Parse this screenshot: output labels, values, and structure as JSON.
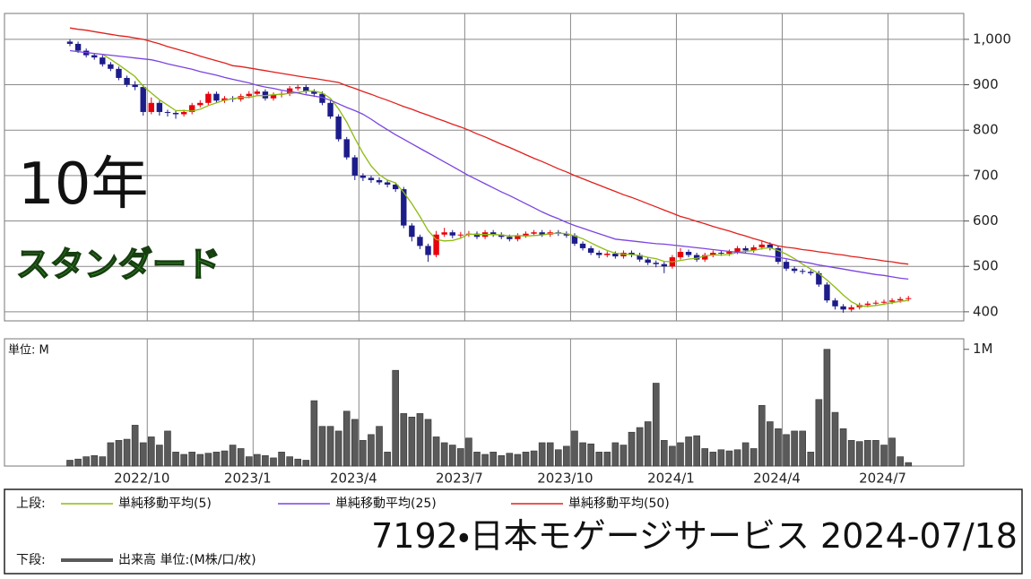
{
  "title": "7192・日本モゲージサービス 2024-07/18",
  "period_label": "10年",
  "market_label": "スタンダード",
  "legend_upper_label": "上段:",
  "legend_lower_label": "下段:",
  "chart_data": [
    {
      "type": "candlestick",
      "up_color": "#e8000b",
      "down_color": "#1c1c8a",
      "open": [
        995,
        990,
        975,
        965,
        960,
        945,
        935,
        915,
        900,
        895,
        840,
        860,
        840,
        838,
        835,
        840,
        855,
        860,
        880,
        865,
        870,
        868,
        875,
        880,
        885,
        870,
        878,
        880,
        892,
        895,
        885,
        880,
        860,
        830,
        780,
        740,
        700,
        695,
        690,
        685,
        680,
        670,
        590,
        565,
        545,
        525,
        570,
        575,
        568,
        570,
        572,
        565,
        575,
        570,
        565,
        560,
        568,
        572,
        575,
        570,
        575,
        572,
        568,
        550,
        540,
        530,
        525,
        528,
        522,
        530,
        525,
        515,
        508,
        505,
        500,
        520,
        532,
        525,
        515,
        525,
        530,
        528,
        532,
        540,
        535,
        542,
        548,
        540,
        510,
        495,
        490,
        488,
        485,
        460,
        425,
        412,
        405,
        410,
        415,
        418,
        420,
        422,
        425,
        428
      ],
      "high": [
        1000,
        995,
        980,
        970,
        965,
        950,
        940,
        920,
        908,
        900,
        872,
        865,
        845,
        843,
        845,
        860,
        866,
        885,
        885,
        875,
        875,
        880,
        886,
        890,
        890,
        883,
        886,
        897,
        900,
        900,
        890,
        885,
        865,
        835,
        785,
        745,
        705,
        700,
        696,
        690,
        685,
        675,
        595,
        570,
        550,
        578,
        585,
        580,
        576,
        578,
        577,
        580,
        580,
        575,
        570,
        573,
        577,
        580,
        580,
        580,
        580,
        577,
        573,
        555,
        545,
        535,
        533,
        533,
        535,
        535,
        530,
        520,
        513,
        510,
        525,
        540,
        537,
        530,
        530,
        535,
        535,
        537,
        545,
        545,
        547,
        555,
        553,
        545,
        515,
        500,
        495,
        492,
        490,
        465,
        430,
        417,
        415,
        420,
        423,
        425,
        427,
        430,
        433,
        435
      ],
      "low": [
        985,
        970,
        960,
        955,
        940,
        930,
        910,
        895,
        888,
        832,
        835,
        832,
        830,
        825,
        830,
        835,
        850,
        855,
        860,
        860,
        862,
        863,
        870,
        875,
        865,
        865,
        872,
        875,
        887,
        880,
        873,
        855,
        825,
        775,
        735,
        690,
        688,
        684,
        680,
        674,
        664,
        584,
        555,
        538,
        510,
        520,
        565,
        562,
        563,
        565,
        560,
        560,
        565,
        560,
        555,
        555,
        563,
        567,
        565,
        565,
        567,
        563,
        545,
        535,
        525,
        518,
        520,
        517,
        517,
        520,
        510,
        503,
        498,
        485,
        495,
        515,
        520,
        510,
        510,
        520,
        523,
        523,
        527,
        530,
        530,
        537,
        535,
        505,
        490,
        485,
        483,
        480,
        455,
        420,
        405,
        398,
        400,
        405,
        410,
        413,
        415,
        417,
        420,
        423
      ],
      "close": [
        990,
        975,
        965,
        960,
        945,
        935,
        915,
        900,
        895,
        840,
        860,
        840,
        838,
        835,
        840,
        855,
        860,
        880,
        865,
        870,
        868,
        875,
        880,
        885,
        870,
        878,
        880,
        892,
        895,
        885,
        880,
        860,
        830,
        780,
        740,
        700,
        695,
        690,
        685,
        680,
        670,
        590,
        565,
        545,
        525,
        570,
        575,
        568,
        570,
        572,
        565,
        575,
        570,
        565,
        560,
        568,
        572,
        575,
        570,
        575,
        572,
        568,
        550,
        540,
        530,
        525,
        528,
        522,
        530,
        525,
        515,
        508,
        505,
        500,
        520,
        532,
        525,
        515,
        525,
        530,
        528,
        532,
        540,
        535,
        542,
        548,
        540,
        510,
        495,
        490,
        488,
        485,
        460,
        425,
        412,
        405,
        410,
        415,
        418,
        420,
        422,
        425,
        428,
        430
      ],
      "series": [
        {
          "name": "単純移動平均(5)",
          "color": "#8dbb10",
          "values": [
            null,
            null,
            null,
            null,
            967,
            956,
            944,
            931,
            918,
            897,
            882,
            867,
            855,
            843,
            843,
            842,
            846,
            854,
            860,
            866,
            869,
            872,
            872,
            876,
            876,
            878,
            879,
            881,
            883,
            886,
            886,
            882,
            870,
            847,
            818,
            782,
            749,
            721,
            702,
            690,
            684,
            663,
            638,
            610,
            579,
            559,
            556,
            557,
            562,
            571,
            570,
            570,
            570,
            569,
            567,
            568,
            567,
            568,
            569,
            572,
            573,
            572,
            567,
            561,
            552,
            543,
            535,
            529,
            527,
            526,
            524,
            520,
            517,
            511,
            510,
            513,
            516,
            518,
            523,
            525,
            525,
            526,
            531,
            533,
            535,
            539,
            541,
            535,
            527,
            517,
            505,
            494,
            484,
            470,
            454,
            437,
            422,
            413,
            412,
            414,
            417,
            420,
            423,
            425
          ]
        },
        {
          "name": "単純移動平均(25)",
          "color": "#7a44e0",
          "values": [
            975,
            973,
            971,
            969,
            967,
            965,
            963,
            961,
            959,
            957,
            955,
            951,
            946,
            942,
            938,
            934,
            929,
            925,
            921,
            916,
            912,
            908,
            904,
            899,
            895,
            892,
            888,
            885,
            882,
            878,
            875,
            872,
            866,
            858,
            850,
            843,
            835,
            824,
            812,
            801,
            790,
            780,
            770,
            760,
            750,
            740,
            730,
            720,
            710,
            700,
            691,
            682,
            673,
            664,
            656,
            647,
            638,
            629,
            620,
            612,
            605,
            597,
            590,
            584,
            578,
            572,
            566,
            560,
            558,
            556,
            554,
            552,
            550,
            549,
            547,
            545,
            543,
            541,
            539,
            537,
            535,
            533,
            531,
            529,
            527,
            524,
            522,
            520,
            517,
            513,
            510,
            507,
            503,
            500,
            497,
            494,
            491,
            488,
            485,
            482,
            480,
            477,
            474,
            472
          ]
        },
        {
          "name": "単純移動平均(50)",
          "color": "#e0201b",
          "values": [
            1025,
            1022,
            1020,
            1017,
            1014,
            1011,
            1008,
            1006,
            1003,
            1000,
            995,
            990,
            984,
            979,
            974,
            969,
            963,
            958,
            953,
            948,
            942,
            940,
            937,
            934,
            931,
            928,
            925,
            922,
            919,
            916,
            914,
            911,
            908,
            905,
            898,
            892,
            885,
            879,
            872,
            866,
            859,
            852,
            846,
            839,
            833,
            826,
            820,
            813,
            807,
            800,
            792,
            785,
            777,
            769,
            762,
            754,
            746,
            738,
            731,
            723,
            715,
            708,
            700,
            693,
            686,
            679,
            672,
            665,
            658,
            652,
            645,
            638,
            631,
            624,
            617,
            610,
            605,
            599,
            594,
            588,
            583,
            578,
            572,
            567,
            561,
            556,
            550,
            545,
            542,
            540,
            537,
            535,
            532,
            530,
            527,
            525,
            522,
            520,
            517,
            515,
            512,
            510,
            507,
            505
          ]
        }
      ],
      "ylim": [
        380,
        1057
      ],
      "yticks": [
        400,
        500,
        600,
        700,
        800,
        900,
        {
          "value": 1000,
          "label": "1,000"
        }
      ],
      "grid": true
    },
    {
      "type": "bar",
      "unit_label": "単位: M",
      "name": "出来高 単位:(M株/口/枚)",
      "color": "#5a5a5a",
      "categories": [
        null,
        null,
        null,
        null,
        null,
        null,
        null,
        null,
        null,
        null,
        "2022/10",
        null,
        null,
        null,
        null,
        null,
        null,
        null,
        null,
        null,
        null,
        null,
        null,
        "2023/1",
        null,
        null,
        null,
        null,
        null,
        null,
        null,
        null,
        null,
        null,
        null,
        null,
        "2023/4",
        null,
        null,
        null,
        null,
        null,
        null,
        null,
        null,
        null,
        null,
        null,
        null,
        "2023/7",
        null,
        null,
        null,
        null,
        null,
        null,
        null,
        null,
        null,
        null,
        null,
        null,
        "2023/10",
        null,
        null,
        null,
        null,
        null,
        null,
        null,
        null,
        null,
        null,
        null,
        null,
        "2024/1",
        null,
        null,
        null,
        null,
        null,
        null,
        null,
        null,
        null,
        null,
        null,
        null,
        "2024/4",
        null,
        null,
        null,
        null,
        null,
        null,
        null,
        null,
        null,
        null,
        null,
        null,
        "2024/7",
        null,
        null
      ],
      "values": [
        0.05,
        0.06,
        0.08,
        0.09,
        0.08,
        0.2,
        0.22,
        0.23,
        0.35,
        0.2,
        0.25,
        0.18,
        0.3,
        0.12,
        0.1,
        0.12,
        0.1,
        0.11,
        0.12,
        0.13,
        0.18,
        0.15,
        0.08,
        0.1,
        0.09,
        0.07,
        0.12,
        0.08,
        0.06,
        0.05,
        0.56,
        0.34,
        0.34,
        0.3,
        0.47,
        0.4,
        0.22,
        0.27,
        0.34,
        0.12,
        0.82,
        0.45,
        0.42,
        0.45,
        0.4,
        0.25,
        0.2,
        0.18,
        0.15,
        0.24,
        0.12,
        0.1,
        0.12,
        0.09,
        0.11,
        0.1,
        0.12,
        0.13,
        0.2,
        0.2,
        0.14,
        0.17,
        0.3,
        0.2,
        0.19,
        0.12,
        0.12,
        0.2,
        0.18,
        0.29,
        0.33,
        0.38,
        0.71,
        0.22,
        0.17,
        0.2,
        0.25,
        0.26,
        0.15,
        0.12,
        0.14,
        0.13,
        0.14,
        0.2,
        0.15,
        0.52,
        0.38,
        0.32,
        0.27,
        0.3,
        0.3,
        0.12,
        0.57,
        1.0,
        0.46,
        0.32,
        0.22,
        0.21,
        0.22,
        0.22,
        0.18,
        0.24,
        0.08,
        0.03
      ],
      "ylim": [
        0,
        1.09
      ],
      "yticks": [
        {
          "value": 1,
          "label": "1M"
        }
      ],
      "grid": true
    }
  ]
}
